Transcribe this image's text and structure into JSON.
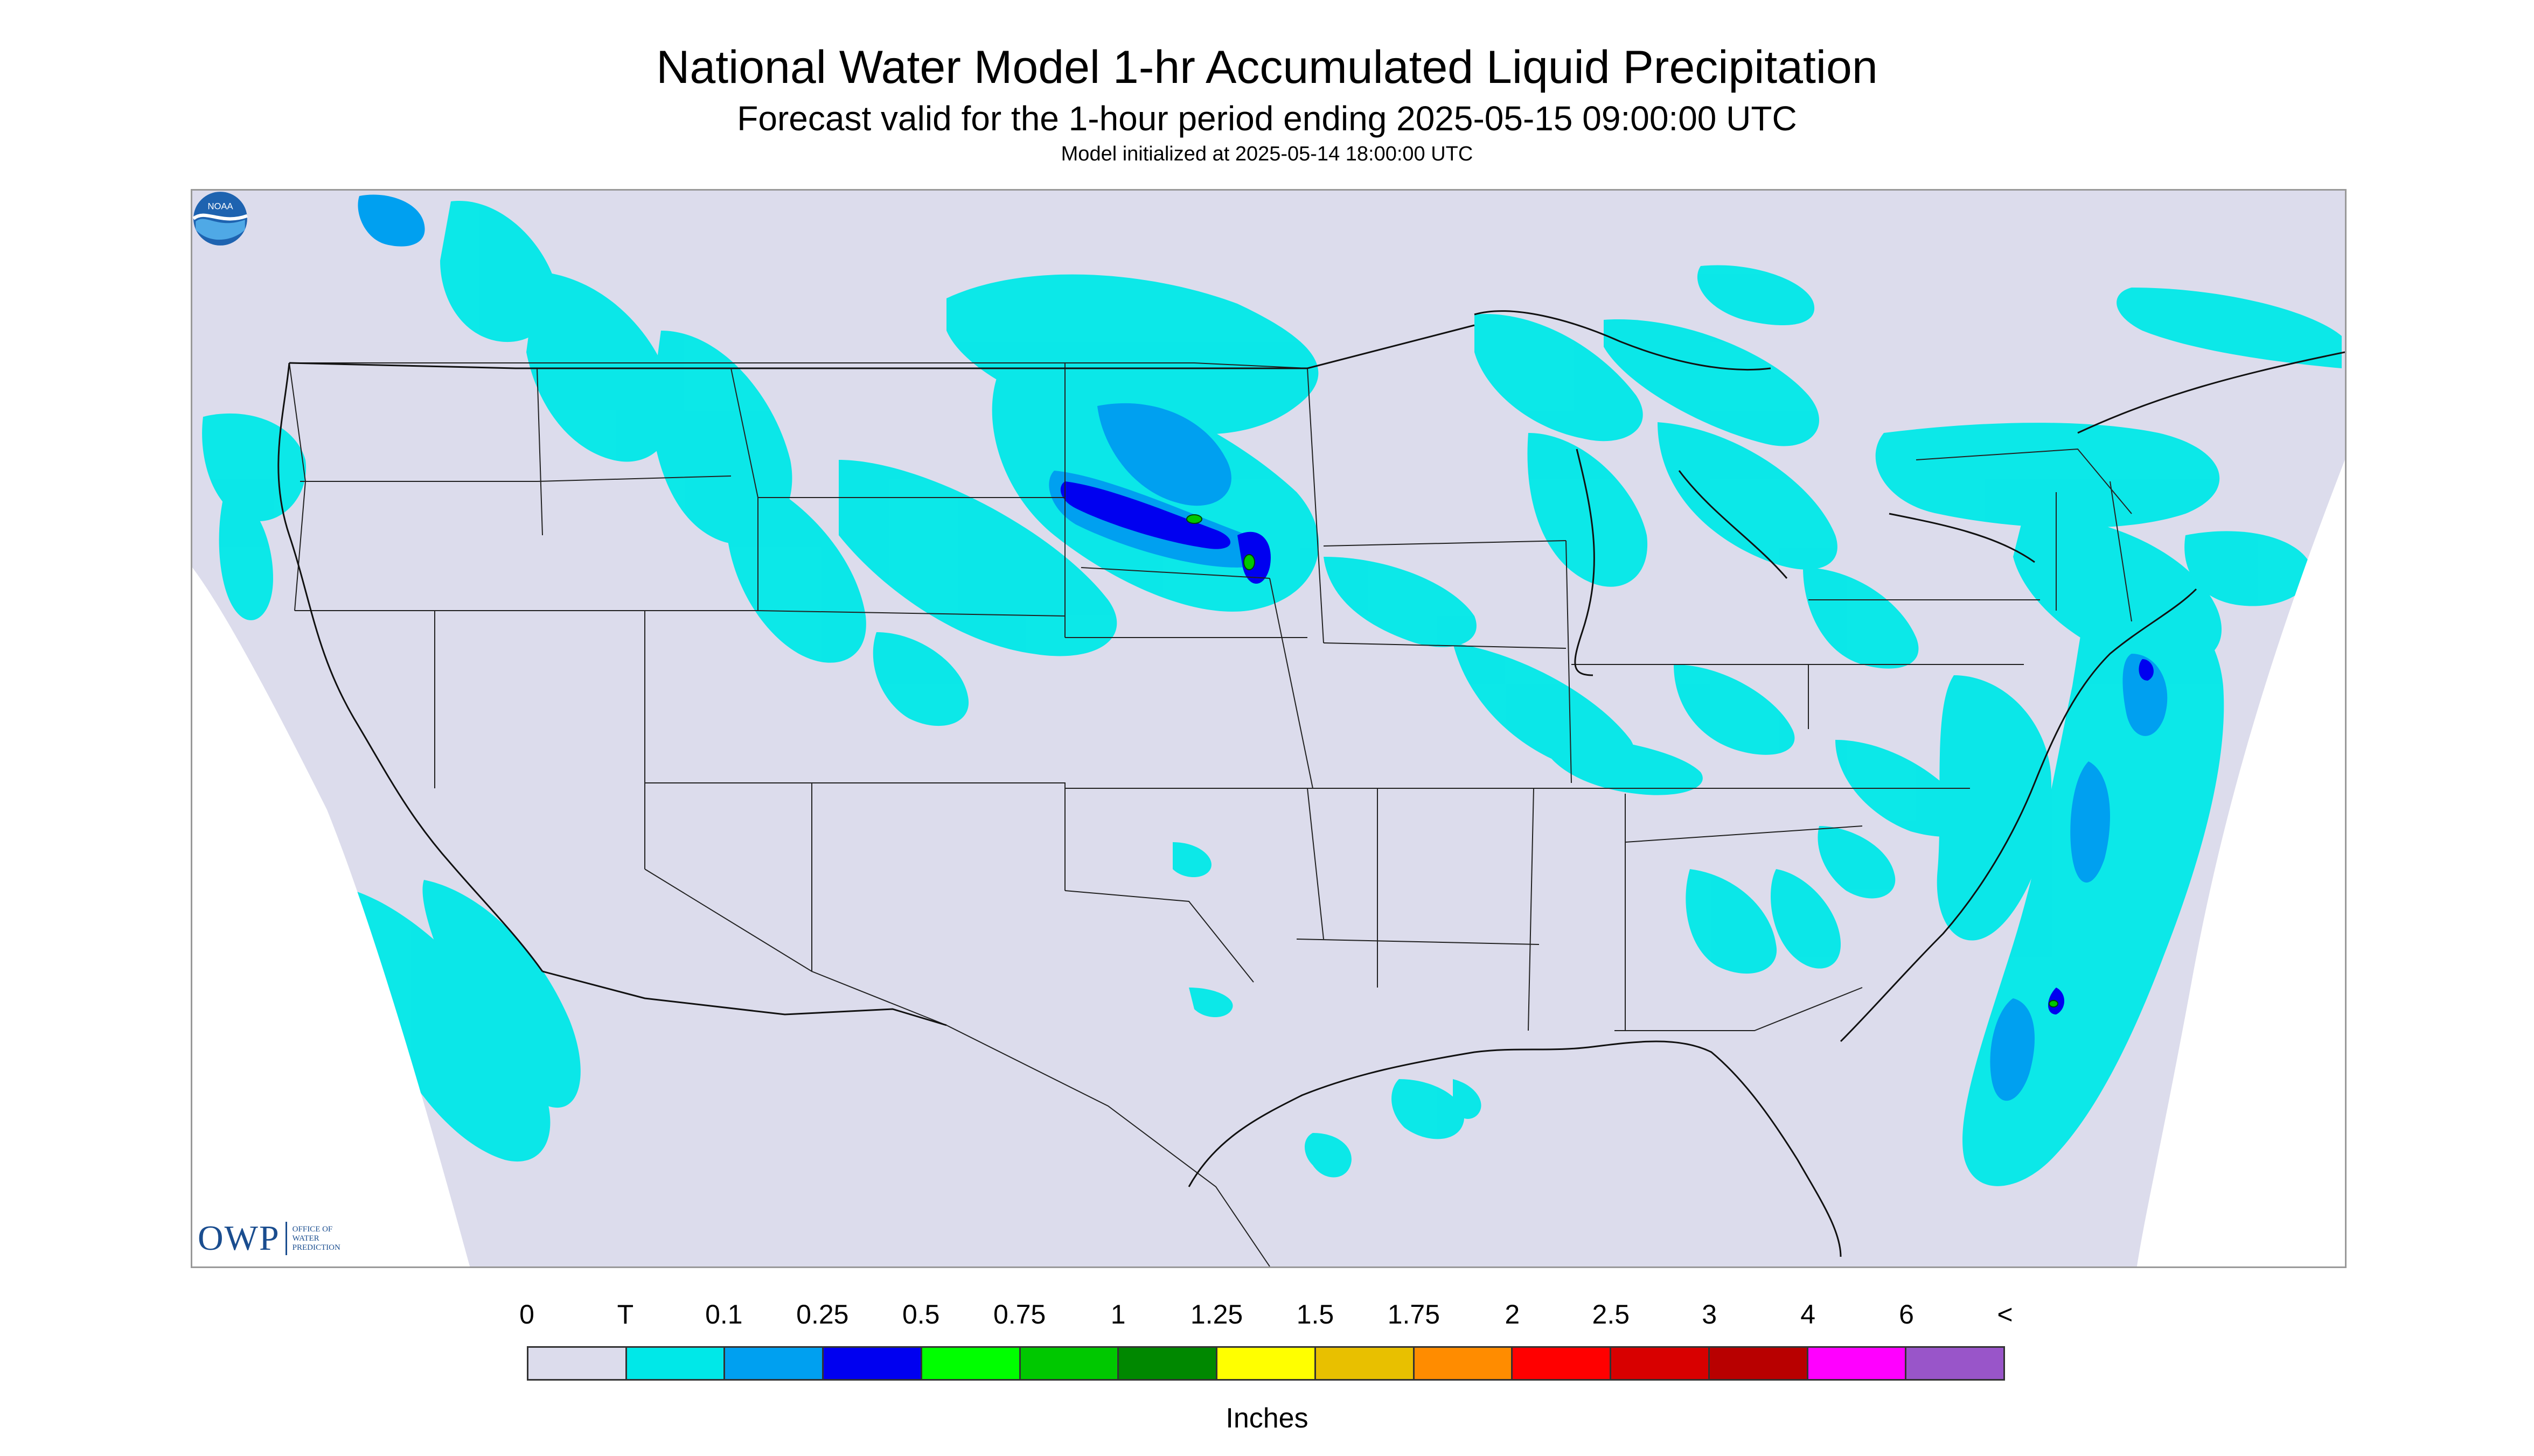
{
  "header": {
    "title": "National Water Model 1-hr Accumulated Liquid Precipitation",
    "subtitle": "Forecast valid for the 1-hour period ending 2025-05-15 09:00:00 UTC",
    "init": "Model initialized at 2025-05-14 18:00:00 UTC"
  },
  "logos": {
    "owp_mark": "OWP",
    "owp_line1": "OFFICE OF",
    "owp_line2": "WATER",
    "owp_line3": "PREDICTION",
    "noaa_text": "NOAA",
    "noaa_icon": "noaa-logo-icon"
  },
  "map": {
    "region": "Continental United States",
    "background_color": "#dcdcec",
    "outside_color": "#ffffff",
    "border_color": "#222222"
  },
  "legend": {
    "labels": [
      "0",
      "T",
      "0.1",
      "0.25",
      "0.5",
      "0.75",
      "1",
      "1.25",
      "1.5",
      "1.75",
      "2",
      "2.5",
      "3",
      "4",
      "6",
      "<"
    ],
    "colors": [
      "#dcdcec",
      "#00e8e8",
      "#00a0f0",
      "#0000f0",
      "#00ff00",
      "#00c800",
      "#008800",
      "#ffff00",
      "#e8c000",
      "#ff8c00",
      "#ff0000",
      "#d80000",
      "#b80000",
      "#ff00ff",
      "#9955c9"
    ],
    "unit": "Inches"
  }
}
